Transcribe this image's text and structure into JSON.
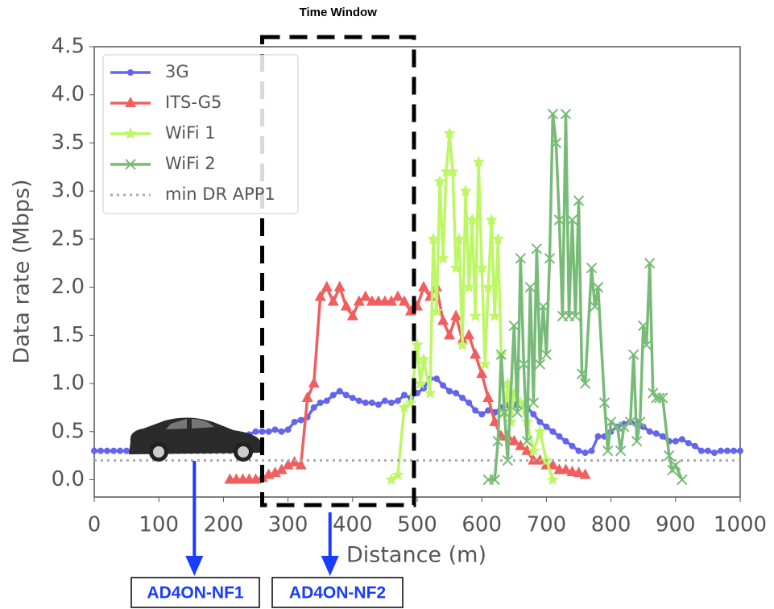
{
  "chart_data": {
    "type": "line",
    "x_label": "Distance (m)",
    "y_label": "Data rate (Mbps)",
    "xlim": [
      0,
      1000
    ],
    "xticks": [
      0,
      100,
      200,
      300,
      400,
      500,
      600,
      700,
      800,
      900,
      1000
    ],
    "ylim": [
      -0.18,
      4.5
    ],
    "yticks": [
      {
        "value": 0,
        "label": "0.0"
      },
      {
        "value": 0.5,
        "label": "0.5"
      },
      {
        "value": 1,
        "label": "1.0"
      },
      {
        "value": 1.5,
        "label": "1.5"
      },
      {
        "value": 2,
        "label": "2.0"
      },
      {
        "value": 2.5,
        "label": "2.5"
      },
      {
        "value": 3,
        "label": "3.0"
      },
      {
        "value": 3.5,
        "label": "3.5"
      },
      {
        "value": 4,
        "label": "4.0"
      },
      4.5
    ],
    "legend": "upper left",
    "series": [
      {
        "name": "3G",
        "color": "#6464ee",
        "marker": "circle",
        "x": [
          0,
          10,
          20,
          30,
          40,
          50,
          60,
          70,
          80,
          90,
          100,
          110,
          120,
          130,
          140,
          150,
          160,
          170,
          180,
          190,
          200,
          210,
          220,
          230,
          240,
          250,
          260,
          270,
          280,
          290,
          300,
          310,
          320,
          330,
          340,
          350,
          360,
          370,
          380,
          390,
          400,
          410,
          420,
          430,
          440,
          450,
          460,
          470,
          480,
          490,
          500,
          510,
          520,
          530,
          540,
          550,
          560,
          570,
          580,
          590,
          600,
          610,
          620,
          630,
          640,
          650,
          660,
          670,
          680,
          690,
          700,
          710,
          720,
          730,
          740,
          750,
          760,
          770,
          780,
          790,
          800,
          810,
          820,
          830,
          840,
          850,
          860,
          870,
          880,
          890,
          900,
          910,
          920,
          930,
          940,
          950,
          960,
          970,
          980,
          990,
          1000
        ],
        "values": [
          0.3,
          0.3,
          0.3,
          0.3,
          0.3,
          0.3,
          0.3,
          0.3,
          0.3,
          0.3,
          0.3,
          0.3,
          0.3,
          0.3,
          0.3,
          0.3,
          0.3,
          0.3,
          0.3,
          0.3,
          0.3,
          0.3,
          0.3,
          0.42,
          0.47,
          0.5,
          0.5,
          0.5,
          0.52,
          0.5,
          0.52,
          0.6,
          0.62,
          0.65,
          0.75,
          0.8,
          0.82,
          0.88,
          0.92,
          0.88,
          0.85,
          0.82,
          0.8,
          0.8,
          0.78,
          0.82,
          0.8,
          0.82,
          0.88,
          0.85,
          0.9,
          0.95,
          1.05,
          1.05,
          0.98,
          0.92,
          0.9,
          0.85,
          0.8,
          0.72,
          0.68,
          0.72,
          0.7,
          0.75,
          0.78,
          0.78,
          0.78,
          0.75,
          0.68,
          0.6,
          0.55,
          0.5,
          0.45,
          0.4,
          0.35,
          0.3,
          0.28,
          0.3,
          0.45,
          0.45,
          0.5,
          0.55,
          0.58,
          0.6,
          0.58,
          0.55,
          0.5,
          0.48,
          0.45,
          0.4,
          0.4,
          0.42,
          0.38,
          0.35,
          0.3,
          0.3,
          0.28,
          0.3,
          0.3,
          0.3,
          0.3
        ]
      },
      {
        "name": "ITS-G5",
        "color": "#f05e5e",
        "marker": "triangle",
        "x": [
          210,
          220,
          230,
          240,
          250,
          260,
          270,
          280,
          290,
          300,
          310,
          320,
          330,
          340,
          350,
          360,
          370,
          380,
          390,
          400,
          410,
          420,
          430,
          440,
          450,
          460,
          470,
          480,
          490,
          500,
          510,
          520,
          530,
          540,
          550,
          560,
          570,
          580,
          590,
          600,
          610,
          620,
          630,
          640,
          650,
          660,
          670,
          680,
          690,
          700,
          710,
          720,
          730,
          740,
          750,
          760
        ],
        "values": [
          0,
          0,
          0,
          0,
          0,
          0.02,
          0.05,
          0.07,
          0.1,
          0.15,
          0.18,
          0.15,
          0.85,
          1.0,
          1.9,
          2.0,
          1.85,
          2.0,
          1.8,
          1.7,
          1.85,
          1.9,
          1.85,
          1.85,
          1.85,
          1.85,
          1.9,
          1.85,
          1.75,
          1.8,
          2.0,
          1.9,
          2.0,
          1.65,
          1.5,
          1.7,
          1.45,
          1.5,
          1.3,
          1.1,
          0.85,
          0.6,
          0.45,
          0.45,
          0.4,
          0.35,
          0.3,
          0.2,
          0.2,
          0.15,
          0.15,
          0.1,
          0.1,
          0.08,
          0.07,
          0.05
        ]
      },
      {
        "name": "WiFi 1",
        "color": "#bdf766",
        "marker": "star",
        "x": [
          460,
          470,
          480,
          490,
          500,
          505,
          510,
          520,
          525,
          530,
          535,
          540,
          545,
          550,
          555,
          560,
          565,
          570,
          575,
          580,
          585,
          590,
          595,
          600,
          605,
          610,
          615,
          620,
          625,
          630,
          635,
          640,
          645,
          650,
          660,
          670,
          680,
          690,
          700,
          710
        ],
        "values": [
          0.0,
          0.05,
          0.75,
          0.8,
          1.4,
          1.0,
          1.25,
          0.9,
          2.5,
          1.75,
          3.1,
          2.3,
          3.2,
          3.6,
          3.2,
          2.2,
          2.5,
          1.4,
          3.0,
          2.0,
          2.7,
          1.7,
          3.3,
          2.2,
          1.2,
          2.0,
          2.7,
          1.7,
          2.5,
          1.3,
          0.7,
          1.0,
          0.6,
          0.9,
          0.8,
          0.6,
          0.3,
          0.5,
          0.2,
          0.0
        ]
      },
      {
        "name": "WiFi 2",
        "color": "#78bb78",
        "marker": "x",
        "x": [
          610,
          620,
          625,
          630,
          635,
          640,
          650,
          655,
          660,
          665,
          670,
          675,
          680,
          685,
          690,
          695,
          700,
          705,
          710,
          715,
          720,
          725,
          730,
          735,
          740,
          745,
          750,
          755,
          760,
          770,
          775,
          780,
          790,
          795,
          800,
          810,
          815,
          820,
          830,
          835,
          840,
          845,
          850,
          855,
          860,
          865,
          870,
          875,
          880,
          890,
          895,
          900,
          910
        ],
        "values": [
          0.0,
          0.0,
          0.4,
          1.3,
          0.7,
          0.2,
          1.6,
          0.7,
          2.3,
          1.2,
          0.4,
          2.0,
          0.8,
          2.4,
          1.2,
          1.8,
          1.3,
          2.3,
          3.8,
          3.5,
          2.7,
          1.7,
          3.8,
          1.7,
          2.7,
          1.7,
          2.9,
          1.1,
          1.0,
          2.2,
          1.8,
          2.0,
          0.8,
          0.3,
          0.6,
          0.55,
          0.3,
          0.55,
          0.6,
          1.3,
          0.4,
          0.6,
          1.6,
          1.4,
          2.25,
          0.9,
          0.85,
          0.85,
          0.85,
          0.25,
          0.1,
          0.15,
          0.0
        ]
      },
      {
        "name": "min DR APP1",
        "color": "#aaaaaa",
        "marker": "none",
        "dash": "dotted",
        "x": [
          0,
          1000
        ],
        "values": [
          0.2,
          0.2
        ]
      }
    ],
    "time_window": {
      "label": "Time Window",
      "x": [
        260,
        495
      ]
    },
    "nodes": [
      {
        "label": "AD4ON-NF1",
        "x": 155
      },
      {
        "label": "AD4ON-NF2",
        "x": 365
      }
    ]
  }
}
